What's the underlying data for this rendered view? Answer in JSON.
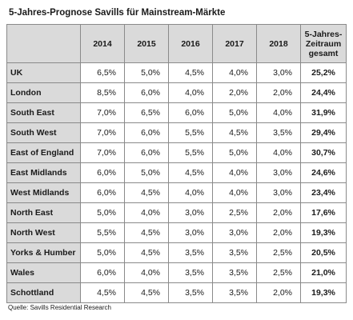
{
  "title": "5-Jahres-Prognose Savills für Mainstream-Märkte",
  "table": {
    "headers": [
      "",
      "2014",
      "2015",
      "2016",
      "2017",
      "2018",
      "5-Jahres-\nZeitraum\ngesamt"
    ],
    "header_lines": [
      "5-Jahres-",
      "Zeitraum",
      "gesamt"
    ],
    "rows": [
      {
        "region": "UK",
        "values": [
          "6,5%",
          "5,0%",
          "4,5%",
          "4,0%",
          "3,0%"
        ],
        "total": "25,2%"
      },
      {
        "region": "London",
        "values": [
          "8,5%",
          "6,0%",
          "4,0%",
          "2,0%",
          "2,0%"
        ],
        "total": "24,4%"
      },
      {
        "region": "South East",
        "values": [
          "7,0%",
          "6,5%",
          "6,0%",
          "5,0%",
          "4,0%"
        ],
        "total": "31,9%"
      },
      {
        "region": "South West",
        "values": [
          "7,0%",
          "6,0%",
          "5,5%",
          "4,5%",
          "3,5%"
        ],
        "total": "29,4%"
      },
      {
        "region": "East of England",
        "values": [
          "7,0%",
          "6,0%",
          "5,5%",
          "5,0%",
          "4,0%"
        ],
        "total": "30,7%"
      },
      {
        "region": "East Midlands",
        "values": [
          "6,0%",
          "5,0%",
          "4,5%",
          "4,0%",
          "3,0%"
        ],
        "total": "24,6%"
      },
      {
        "region": "West Midlands",
        "values": [
          "6,0%",
          "4,5%",
          "4,0%",
          "4,0%",
          "3,0%"
        ],
        "total": "23,4%"
      },
      {
        "region": "North East",
        "values": [
          "5,0%",
          "4,0%",
          "3,0%",
          "2,5%",
          "2,0%"
        ],
        "total": "17,6%"
      },
      {
        "region": "North West",
        "values": [
          "5,5%",
          "4,5%",
          "3,0%",
          "3,0%",
          "2,0%"
        ],
        "total": "19,3%"
      },
      {
        "region": "Yorks & Humber",
        "values": [
          "5,0%",
          "4,5%",
          "3,5%",
          "3,5%",
          "2,5%"
        ],
        "total": "20,5%"
      },
      {
        "region": "Wales",
        "values": [
          "6,0%",
          "4,0%",
          "3,5%",
          "3,5%",
          "2,5%"
        ],
        "total": "21,0%"
      },
      {
        "region": "Schottland",
        "values": [
          "4,5%",
          "4,5%",
          "3,5%",
          "3,5%",
          "2,0%"
        ],
        "total": "19,3%"
      }
    ]
  },
  "source": "Quelle: Savills Residential Research",
  "colors": {
    "header_bg": "#dadada",
    "border": "#8a8a8a",
    "text": "#1a1a1a"
  }
}
